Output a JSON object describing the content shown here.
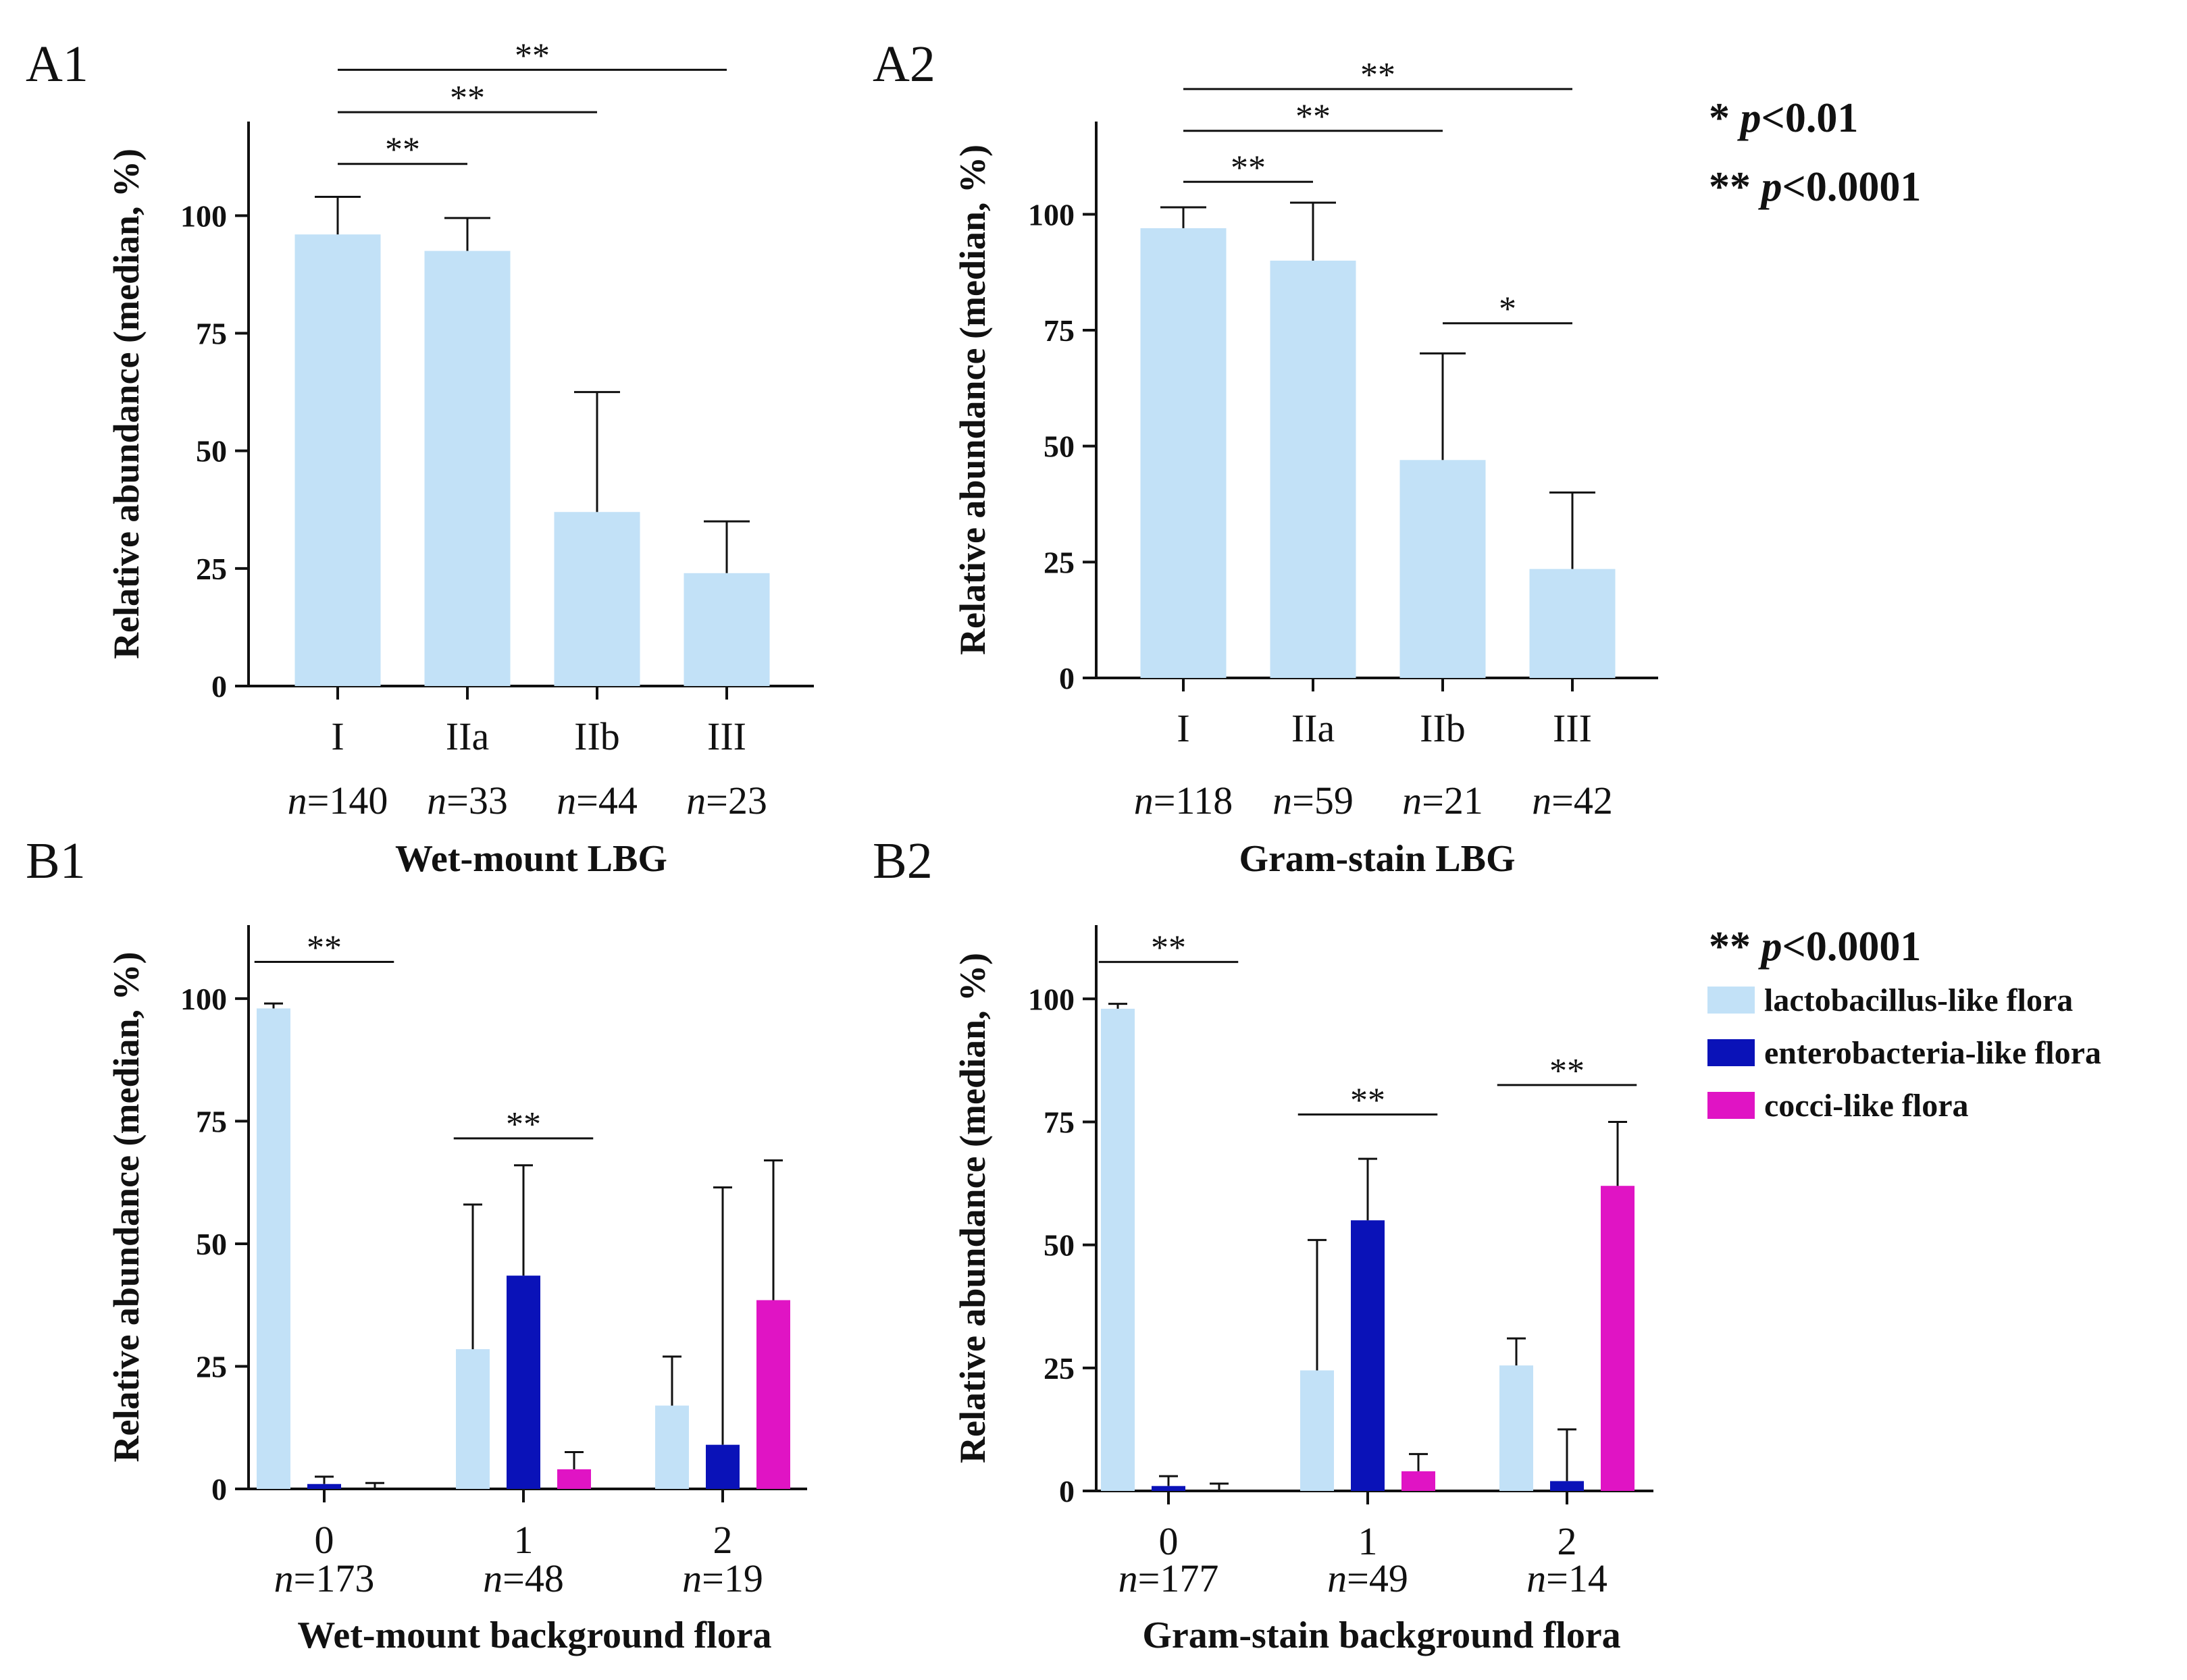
{
  "panels": [
    {
      "id": "A1",
      "label": "A1",
      "xtitle": "Wet-mount LBG",
      "ylabel": "Relative abundance (median, %)",
      "ylim": [
        0,
        120
      ],
      "yticks": [
        0,
        25,
        50,
        75,
        100
      ],
      "categories": [
        {
          "name": "I",
          "n": "140",
          "values": [
            {
              "series": "lactobacillus-like flora",
              "value": 96,
              "err": 104
            }
          ]
        },
        {
          "name": "IIa",
          "n": "33",
          "values": [
            {
              "series": "lactobacillus-like flora",
              "value": 92.5,
              "err": 99.5
            }
          ]
        },
        {
          "name": "IIb",
          "n": "44",
          "values": [
            {
              "series": "lactobacillus-like flora",
              "value": 37,
              "err": 62.5
            }
          ]
        },
        {
          "name": "III",
          "n": "23",
          "values": [
            {
              "series": "lactobacillus-like flora",
              "value": 24,
              "err": 35
            }
          ]
        }
      ],
      "significance": [
        {
          "from": 0,
          "to": 1,
          "y": 111,
          "text": "**"
        },
        {
          "from": 0,
          "to": 2,
          "y": 122,
          "text": "**"
        },
        {
          "from": 0,
          "to": 3,
          "y": 131,
          "text": "**"
        }
      ]
    },
    {
      "id": "A2",
      "label": "A2",
      "xtitle": "Gram-stain LBG",
      "ylabel": "Relative abundance (median, %)",
      "ylim": [
        0,
        120
      ],
      "yticks": [
        0,
        25,
        50,
        75,
        100
      ],
      "categories": [
        {
          "name": "I",
          "n": "118",
          "values": [
            {
              "series": "lactobacillus-like flora",
              "value": 97,
              "err": 101.5
            }
          ]
        },
        {
          "name": "IIa",
          "n": "59",
          "values": [
            {
              "series": "lactobacillus-like flora",
              "value": 90,
              "err": 102.5
            }
          ]
        },
        {
          "name": "IIb",
          "n": "21",
          "values": [
            {
              "series": "lactobacillus-like flora",
              "value": 47,
              "err": 70
            }
          ]
        },
        {
          "name": "III",
          "n": "42",
          "values": [
            {
              "series": "lactobacillus-like flora",
              "value": 23.5,
              "err": 40
            }
          ]
        }
      ],
      "significance": [
        {
          "from": 0,
          "to": 1,
          "y": 107,
          "text": "**"
        },
        {
          "from": 0,
          "to": 2,
          "y": 118,
          "text": "**"
        },
        {
          "from": 0,
          "to": 3,
          "y": 127,
          "text": "**"
        },
        {
          "from": 2,
          "to": 3,
          "y": 76.5,
          "text": "*"
        }
      ]
    },
    {
      "id": "B1",
      "label": "B1",
      "xtitle": "Wet-mount background flora",
      "ylabel": "Relative abundance (median, %)",
      "ylim": [
        0,
        115
      ],
      "yticks": [
        0,
        25,
        50,
        75,
        100
      ],
      "categories": [
        {
          "name": "0",
          "n": "173",
          "values": [
            {
              "series": "lactobacillus-like flora",
              "value": 98,
              "err": 99
            },
            {
              "series": "enterobacteria-like flora",
              "value": 1,
              "err": 2.5
            },
            {
              "series": "cocci-like flora",
              "value": 0,
              "err": 1.2
            }
          ]
        },
        {
          "name": "1",
          "n": "48",
          "values": [
            {
              "series": "lactobacillus-like flora",
              "value": 28.5,
              "err": 58
            },
            {
              "series": "enterobacteria-like flora",
              "value": 43.5,
              "err": 66
            },
            {
              "series": "cocci-like flora",
              "value": 4,
              "err": 7.5
            }
          ]
        },
        {
          "name": "2",
          "n": "19",
          "values": [
            {
              "series": "lactobacillus-like flora",
              "value": 17,
              "err": 27
            },
            {
              "series": "enterobacteria-like flora",
              "value": 9,
              "err": 61.5
            },
            {
              "series": "cocci-like flora",
              "value": 38.5,
              "err": 67
            }
          ]
        }
      ],
      "significance": [
        {
          "fromX": -0.35,
          "toX": 0.35,
          "y": 107.5,
          "text": "**"
        },
        {
          "fromX": 0.65,
          "toX": 1.35,
          "y": 71.5,
          "text": "**"
        }
      ]
    },
    {
      "id": "B2",
      "label": "B2",
      "xtitle": "Gram-stain background flora",
      "ylabel": "Relative abundance (median, %)",
      "ylim": [
        0,
        115
      ],
      "yticks": [
        0,
        25,
        50,
        75,
        100
      ],
      "categories": [
        {
          "name": "0",
          "n": "177",
          "values": [
            {
              "series": "lactobacillus-like flora",
              "value": 98,
              "err": 99
            },
            {
              "series": "enterobacteria-like flora",
              "value": 1,
              "err": 3
            },
            {
              "series": "cocci-like flora",
              "value": 0,
              "err": 1.5
            }
          ]
        },
        {
          "name": "1",
          "n": "49",
          "values": [
            {
              "series": "lactobacillus-like flora",
              "value": 24.5,
              "err": 51
            },
            {
              "series": "enterobacteria-like flora",
              "value": 55,
              "err": 67.5
            },
            {
              "series": "cocci-like flora",
              "value": 4,
              "err": 7.5
            }
          ]
        },
        {
          "name": "2",
          "n": "14",
          "values": [
            {
              "series": "lactobacillus-like flora",
              "value": 25.5,
              "err": 31
            },
            {
              "series": "enterobacteria-like flora",
              "value": 2,
              "err": 12.5
            },
            {
              "series": "cocci-like flora",
              "value": 62,
              "err": 75
            }
          ]
        }
      ],
      "significance": [
        {
          "fromX": -0.35,
          "toX": 0.35,
          "y": 107.5,
          "text": "**"
        },
        {
          "fromX": 0.65,
          "toX": 1.35,
          "y": 76.5,
          "text": "**"
        },
        {
          "fromX": 1.65,
          "toX": 2.35,
          "y": 82.5,
          "text": "**"
        }
      ]
    }
  ],
  "legendA": [
    "* p<0.01",
    "** p<0.0001"
  ],
  "legendB": {
    "sig": "** p<0.0001",
    "series": [
      "lactobacillus-like flora",
      "enterobacteria-like flora",
      "cocci-like flora"
    ]
  },
  "colors": {
    "lactobacillus-like flora": "#c2e1f7",
    "enterobacteria-like flora": "#0a12b8",
    "cocci-like flora": "#e014c4"
  },
  "n_prefix": "n="
}
